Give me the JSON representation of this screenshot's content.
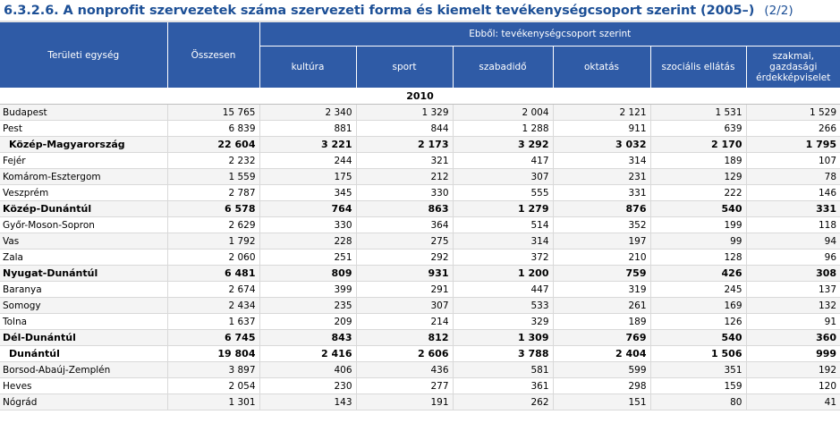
{
  "title": {
    "main": "6.3.2.6. A nonprofit szervezetek száma szervezeti forma és kiemelt tevékenységcsoport szerint (2005–)",
    "suffix": "(2/2)"
  },
  "header": {
    "region": "Területi egység",
    "total": "Összesen",
    "group": "Ebből: tevékenységcsoport szerint",
    "columns": [
      "kultúra",
      "sport",
      "szabadidő",
      "oktatás",
      "szociális ellátás",
      "szakmai, gazdasági érdekképviselet"
    ]
  },
  "year": "2010",
  "rows": [
    {
      "name": "Budapest",
      "values": [
        "15 765",
        "2 340",
        "1 329",
        "2 004",
        "2 121",
        "1 531",
        "1 529"
      ],
      "bold": false,
      "indent": false
    },
    {
      "name": "Pest",
      "values": [
        "6 839",
        "881",
        "844",
        "1 288",
        "911",
        "639",
        "266"
      ],
      "bold": false,
      "indent": false
    },
    {
      "name": "Közép-Magyarország",
      "values": [
        "22 604",
        "3 221",
        "2 173",
        "3 292",
        "3 032",
        "2 170",
        "1 795"
      ],
      "bold": true,
      "indent": true
    },
    {
      "name": "Fejér",
      "values": [
        "2 232",
        "244",
        "321",
        "417",
        "314",
        "189",
        "107"
      ],
      "bold": false,
      "indent": false
    },
    {
      "name": "Komárom-Esztergom",
      "values": [
        "1 559",
        "175",
        "212",
        "307",
        "231",
        "129",
        "78"
      ],
      "bold": false,
      "indent": false
    },
    {
      "name": "Veszprém",
      "values": [
        "2 787",
        "345",
        "330",
        "555",
        "331",
        "222",
        "146"
      ],
      "bold": false,
      "indent": false
    },
    {
      "name": "Közép-Dunántúl",
      "values": [
        "6 578",
        "764",
        "863",
        "1 279",
        "876",
        "540",
        "331"
      ],
      "bold": true,
      "indent": false
    },
    {
      "name": "Győr-Moson-Sopron",
      "values": [
        "2 629",
        "330",
        "364",
        "514",
        "352",
        "199",
        "118"
      ],
      "bold": false,
      "indent": false
    },
    {
      "name": "Vas",
      "values": [
        "1 792",
        "228",
        "275",
        "314",
        "197",
        "99",
        "94"
      ],
      "bold": false,
      "indent": false
    },
    {
      "name": "Zala",
      "values": [
        "2 060",
        "251",
        "292",
        "372",
        "210",
        "128",
        "96"
      ],
      "bold": false,
      "indent": false
    },
    {
      "name": "Nyugat-Dunántúl",
      "values": [
        "6 481",
        "809",
        "931",
        "1 200",
        "759",
        "426",
        "308"
      ],
      "bold": true,
      "indent": false
    },
    {
      "name": "Baranya",
      "values": [
        "2 674",
        "399",
        "291",
        "447",
        "319",
        "245",
        "137"
      ],
      "bold": false,
      "indent": false
    },
    {
      "name": "Somogy",
      "values": [
        "2 434",
        "235",
        "307",
        "533",
        "261",
        "169",
        "132"
      ],
      "bold": false,
      "indent": false
    },
    {
      "name": "Tolna",
      "values": [
        "1 637",
        "209",
        "214",
        "329",
        "189",
        "126",
        "91"
      ],
      "bold": false,
      "indent": false
    },
    {
      "name": "Dél-Dunántúl",
      "values": [
        "6 745",
        "843",
        "812",
        "1 309",
        "769",
        "540",
        "360"
      ],
      "bold": true,
      "indent": false
    },
    {
      "name": "Dunántúl",
      "values": [
        "19 804",
        "2 416",
        "2 606",
        "3 788",
        "2 404",
        "1 506",
        "999"
      ],
      "bold": true,
      "indent": true
    },
    {
      "name": "Borsod-Abaúj-Zemplén",
      "values": [
        "3 897",
        "406",
        "436",
        "581",
        "599",
        "351",
        "192"
      ],
      "bold": false,
      "indent": false
    },
    {
      "name": "Heves",
      "values": [
        "2 054",
        "230",
        "277",
        "361",
        "298",
        "159",
        "120"
      ],
      "bold": false,
      "indent": false
    },
    {
      "name": "Nógrád",
      "values": [
        "1 301",
        "143",
        "191",
        "262",
        "151",
        "80",
        "41"
      ],
      "bold": false,
      "indent": false
    }
  ]
}
